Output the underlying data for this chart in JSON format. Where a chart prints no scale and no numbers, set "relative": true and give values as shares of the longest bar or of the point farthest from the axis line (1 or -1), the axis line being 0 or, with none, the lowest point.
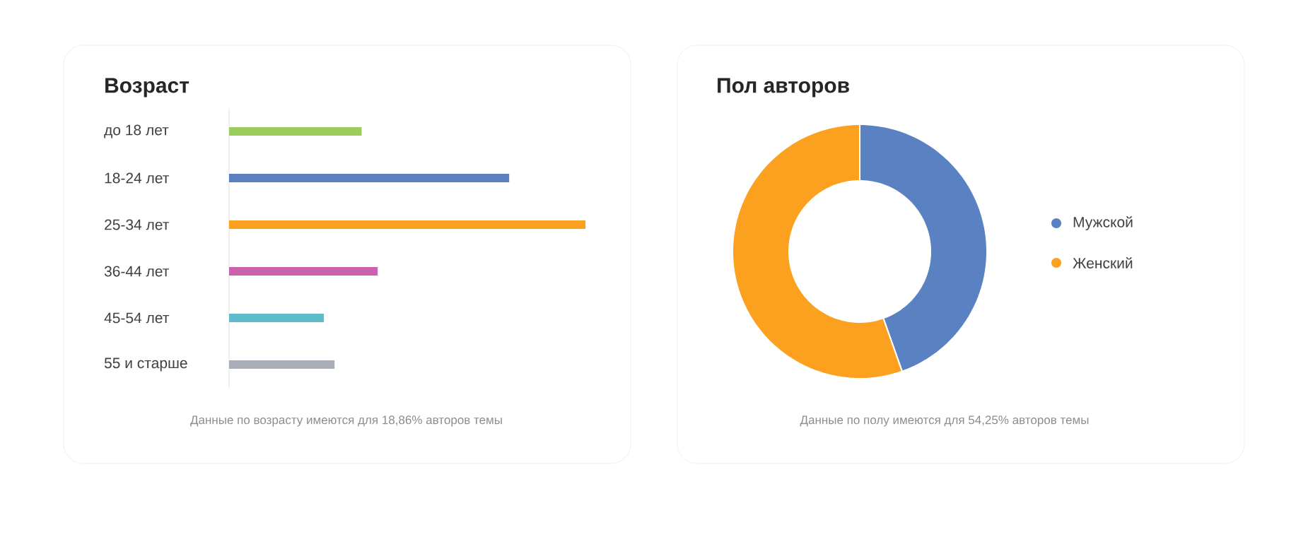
{
  "chart_data": [
    {
      "type": "bar",
      "orientation": "horizontal",
      "relative": true,
      "title": "Возраст",
      "categories": [
        "до 18 лет",
        "18-24 лет",
        "25-34 лет",
        "36-44 лет",
        "45-54 лет",
        "55 и старше"
      ],
      "values": [
        0.372,
        0.786,
        1,
        0.417,
        0.266,
        0.296
      ],
      "colors": [
        "#9ccc5c",
        "#5b80c2",
        "#fca01f",
        "#cb60ae",
        "#60bccd",
        "#a9adb8"
      ],
      "annotations": [
        "Данные по возрасту имеются для 18,86% авторов темы"
      ]
    },
    {
      "type": "donut",
      "title": "Пол авторов",
      "legend": "right",
      "categories": [
        "Мужской",
        "Женский"
      ],
      "values": [
        44.6,
        55.4
      ],
      "colors": [
        "#5a82c2",
        "#fca01f"
      ],
      "annotations": [
        "Данные по полу имеются для 54,25% авторов темы"
      ]
    }
  ]
}
